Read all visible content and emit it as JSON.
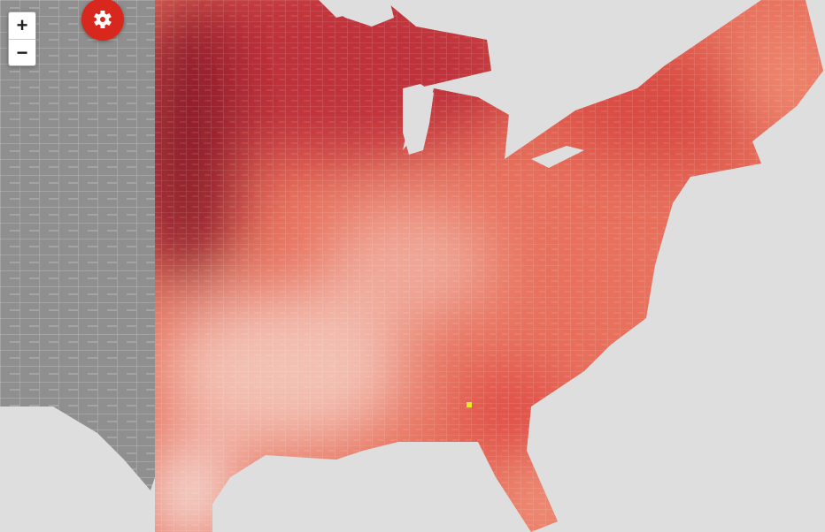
{
  "controls": {
    "zoom_in": "+",
    "zoom_out": "−"
  }
}
